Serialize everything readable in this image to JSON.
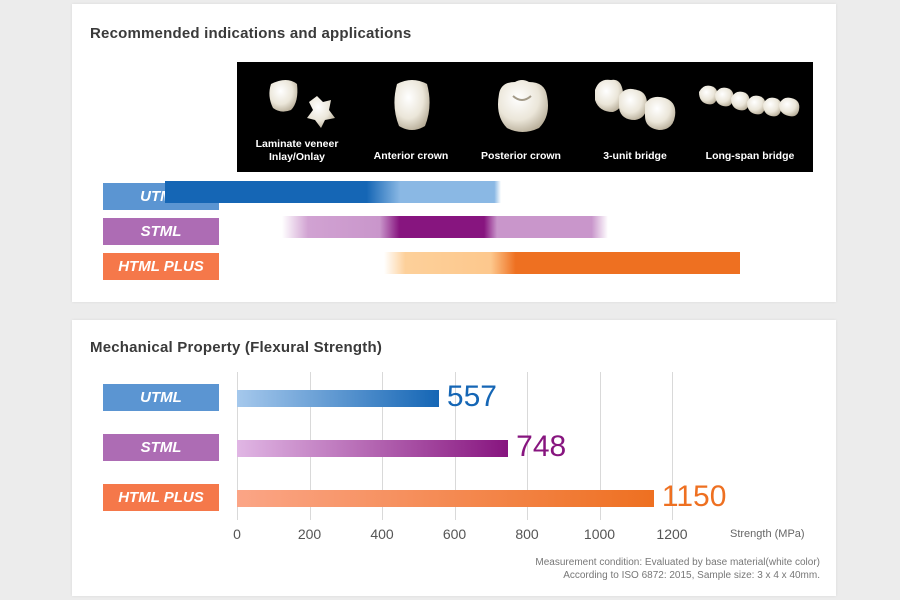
{
  "applications": {
    "title": "Recommended indications and applications",
    "restorations": [
      {
        "label": "Laminate veneer",
        "label2": "Inlay/Onlay",
        "icon": "veneer-inlay-icon"
      },
      {
        "label": "Anterior crown",
        "icon": "anterior-crown-icon"
      },
      {
        "label": "Posterior crown",
        "icon": "posterior-crown-icon"
      },
      {
        "label": "3-unit bridge",
        "icon": "three-unit-bridge-icon"
      },
      {
        "label": "Long-span bridge",
        "icon": "long-span-bridge-icon"
      }
    ],
    "materials": [
      "UTML",
      "STML",
      "HTML PLUS"
    ]
  },
  "strength": {
    "title": "Mechanical Property (Flexural Strength)",
    "unit_label": "Strength (MPa)",
    "note_line1": "Measurement condition: Evaluated by base material(white color)",
    "note_line2": "According to ISO 6872: 2015, Sample size: 3 x 4 x 40mm."
  },
  "colors": {
    "utml": "#1566b5",
    "stml": "#87157f",
    "html_plus": "#ee7021"
  },
  "chart_data": {
    "type": "bar",
    "orientation": "horizontal",
    "title": "Mechanical Property (Flexural Strength)",
    "xlabel": "Strength (MPa)",
    "categories": [
      "UTML",
      "STML",
      "HTML PLUS"
    ],
    "values": [
      557,
      748,
      1150
    ],
    "xlim": [
      0,
      1200
    ],
    "ticks": [
      0,
      200,
      400,
      600,
      800,
      1000,
      1200
    ],
    "grid": "vertical",
    "data_labels": true
  }
}
